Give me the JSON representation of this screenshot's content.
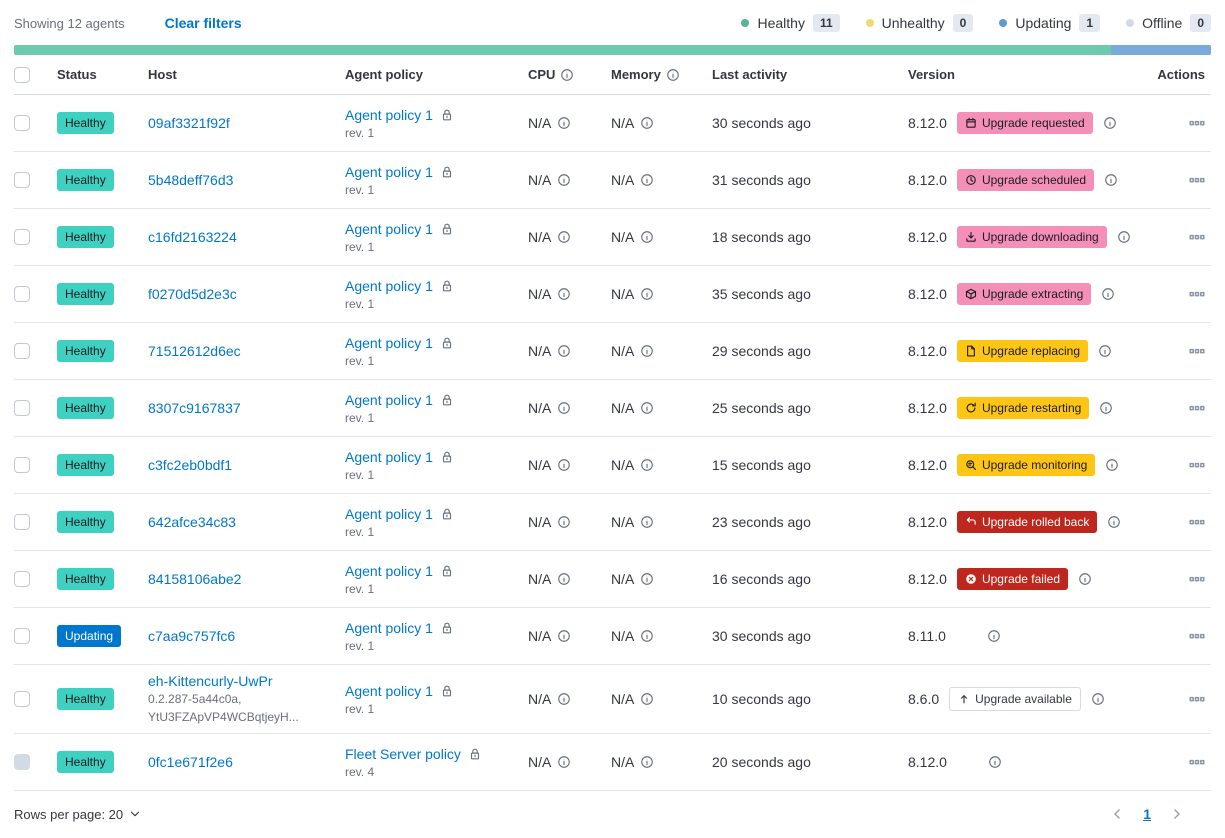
{
  "toolbar": {
    "showing_text": "Showing 12 agents",
    "clear_filters_label": "Clear filters",
    "legend": [
      {
        "label": "Healthy",
        "count": "11",
        "color": "#54B399"
      },
      {
        "label": "Unhealthy",
        "count": "0",
        "color": "#F1D86F"
      },
      {
        "label": "Updating",
        "count": "1",
        "color": "#5E9BD6"
      },
      {
        "label": "Offline",
        "count": "0",
        "color": "#D3DAE6"
      }
    ]
  },
  "health_bar": {
    "segments": [
      {
        "color": "#6BCBAC",
        "fraction": 0.9167
      },
      {
        "color": "#79AAD9",
        "fraction": 0.0833
      }
    ]
  },
  "colors": {
    "healthy_badge": "#3ED0C0",
    "updating_badge": "#0077CC",
    "pink_badge": "#F48FB8",
    "warning_badge": "#FEC514",
    "danger_badge": "#BD271E",
    "link": "#0077CC"
  },
  "table": {
    "headers": {
      "status": "Status",
      "host": "Host",
      "policy": "Agent policy",
      "cpu": "CPU",
      "memory": "Memory",
      "last_activity": "Last activity",
      "version": "Version",
      "actions": "Actions"
    },
    "rows": [
      {
        "status": {
          "label": "Healthy",
          "variant": "healthy"
        },
        "host": "09af3321f92f",
        "host_sub": [],
        "policy": {
          "name": "Agent policy 1",
          "rev": "rev. 1",
          "locked": false
        },
        "cpu": "N/A",
        "memory": "N/A",
        "last_activity": "30 seconds ago",
        "version": "8.12.0",
        "upgrade": {
          "label": "Upgrade requested",
          "icon": "calendar-icon",
          "variant": "pink"
        },
        "version_info": true,
        "checkbox_disabled": false
      },
      {
        "status": {
          "label": "Healthy",
          "variant": "healthy"
        },
        "host": "5b48deff76d3",
        "host_sub": [],
        "policy": {
          "name": "Agent policy 1",
          "rev": "rev. 1",
          "locked": false
        },
        "cpu": "N/A",
        "memory": "N/A",
        "last_activity": "31 seconds ago",
        "version": "8.12.0",
        "upgrade": {
          "label": "Upgrade scheduled",
          "icon": "clock-icon",
          "variant": "pink"
        },
        "version_info": true,
        "checkbox_disabled": false
      },
      {
        "status": {
          "label": "Healthy",
          "variant": "healthy"
        },
        "host": "c16fd2163224",
        "host_sub": [],
        "policy": {
          "name": "Agent policy 1",
          "rev": "rev. 1",
          "locked": false
        },
        "cpu": "N/A",
        "memory": "N/A",
        "last_activity": "18 seconds ago",
        "version": "8.12.0",
        "upgrade": {
          "label": "Upgrade downloading",
          "icon": "download-icon",
          "variant": "pink"
        },
        "version_info": true,
        "checkbox_disabled": false
      },
      {
        "status": {
          "label": "Healthy",
          "variant": "healthy"
        },
        "host": "f0270d5d2e3c",
        "host_sub": [],
        "policy": {
          "name": "Agent policy 1",
          "rev": "rev. 1",
          "locked": false
        },
        "cpu": "N/A",
        "memory": "N/A",
        "last_activity": "35 seconds ago",
        "version": "8.12.0",
        "upgrade": {
          "label": "Upgrade extracting",
          "icon": "package-icon",
          "variant": "pink"
        },
        "version_info": true,
        "checkbox_disabled": false
      },
      {
        "status": {
          "label": "Healthy",
          "variant": "healthy"
        },
        "host": "71512612d6ec",
        "host_sub": [],
        "policy": {
          "name": "Agent policy 1",
          "rev": "rev. 1",
          "locked": false
        },
        "cpu": "N/A",
        "memory": "N/A",
        "last_activity": "29 seconds ago",
        "version": "8.12.0",
        "upgrade": {
          "label": "Upgrade replacing",
          "icon": "document-icon",
          "variant": "warning"
        },
        "version_info": true,
        "checkbox_disabled": false
      },
      {
        "status": {
          "label": "Healthy",
          "variant": "healthy"
        },
        "host": "8307c9167837",
        "host_sub": [],
        "policy": {
          "name": "Agent policy 1",
          "rev": "rev. 1",
          "locked": false
        },
        "cpu": "N/A",
        "memory": "N/A",
        "last_activity": "25 seconds ago",
        "version": "8.12.0",
        "upgrade": {
          "label": "Upgrade restarting",
          "icon": "refresh-icon",
          "variant": "warning"
        },
        "version_info": true,
        "checkbox_disabled": false
      },
      {
        "status": {
          "label": "Healthy",
          "variant": "healthy"
        },
        "host": "c3fc2eb0bdf1",
        "host_sub": [],
        "policy": {
          "name": "Agent policy 1",
          "rev": "rev. 1",
          "locked": false
        },
        "cpu": "N/A",
        "memory": "N/A",
        "last_activity": "15 seconds ago",
        "version": "8.12.0",
        "upgrade": {
          "label": "Upgrade monitoring",
          "icon": "inspect-icon",
          "variant": "warning"
        },
        "version_info": true,
        "checkbox_disabled": false
      },
      {
        "status": {
          "label": "Healthy",
          "variant": "healthy"
        },
        "host": "642afce34c83",
        "host_sub": [],
        "policy": {
          "name": "Agent policy 1",
          "rev": "rev. 1",
          "locked": false
        },
        "cpu": "N/A",
        "memory": "N/A",
        "last_activity": "23 seconds ago",
        "version": "8.12.0",
        "upgrade": {
          "label": "Upgrade rolled back",
          "icon": "return-icon",
          "variant": "danger"
        },
        "version_info": true,
        "checkbox_disabled": false
      },
      {
        "status": {
          "label": "Healthy",
          "variant": "healthy"
        },
        "host": "84158106abe2",
        "host_sub": [],
        "policy": {
          "name": "Agent policy 1",
          "rev": "rev. 1",
          "locked": false
        },
        "cpu": "N/A",
        "memory": "N/A",
        "last_activity": "16 seconds ago",
        "version": "8.12.0",
        "upgrade": {
          "label": "Upgrade failed",
          "icon": "error-icon",
          "variant": "danger"
        },
        "version_info": true,
        "checkbox_disabled": false
      },
      {
        "status": {
          "label": "Updating",
          "variant": "updating"
        },
        "host": "c7aa9c757fc6",
        "host_sub": [],
        "policy": {
          "name": "Agent policy 1",
          "rev": "rev. 1",
          "locked": false
        },
        "cpu": "N/A",
        "memory": "N/A",
        "last_activity": "30 seconds ago",
        "version": "8.11.0",
        "upgrade": null,
        "version_info": true,
        "checkbox_disabled": false
      },
      {
        "status": {
          "label": "Healthy",
          "variant": "healthy"
        },
        "host": "eh-Kittencurly-UwPr",
        "host_sub": [
          "0.2.287-5a44c0a,",
          "YtU3FZApVP4WCBqtjeyH..."
        ],
        "policy": {
          "name": "Agent policy 1",
          "rev": "rev. 1",
          "locked": false
        },
        "cpu": "N/A",
        "memory": "N/A",
        "last_activity": "10 seconds ago",
        "version": "8.6.0",
        "upgrade": {
          "label": "Upgrade available",
          "icon": "arrow-up-icon",
          "variant": "hollow"
        },
        "version_info": false,
        "checkbox_disabled": false
      },
      {
        "status": {
          "label": "Healthy",
          "variant": "healthy"
        },
        "host": "0fc1e671f2e6",
        "host_sub": [],
        "policy": {
          "name": "Fleet Server policy",
          "rev": "rev. 4",
          "locked": true
        },
        "cpu": "N/A",
        "memory": "N/A",
        "last_activity": "20 seconds ago",
        "version": "8.12.0",
        "upgrade": null,
        "version_info": false,
        "checkbox_disabled": true
      }
    ]
  },
  "footer": {
    "rows_per_page_label": "Rows per page: 20",
    "page": "1"
  }
}
